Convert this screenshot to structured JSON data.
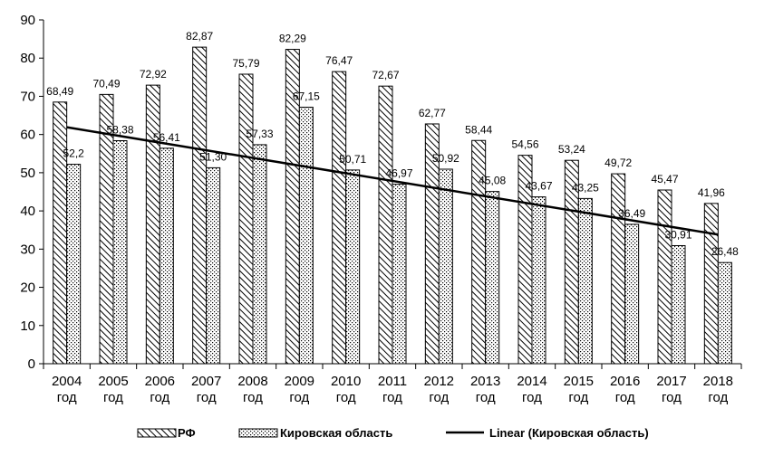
{
  "chart_data": {
    "type": "bar",
    "categories": [
      "2004 год",
      "2005 год",
      "2006 год",
      "2007 год",
      "2008 год",
      "2009 год",
      "2010 год",
      "2011 год",
      "2012 год",
      "2013 год",
      "2014 год",
      "2015 год",
      "2016 год",
      "2017 год",
      "2018 год"
    ],
    "category_lines": [
      [
        "2004",
        "год"
      ],
      [
        "2005",
        "год"
      ],
      [
        "2006",
        "год"
      ],
      [
        "2007",
        "год"
      ],
      [
        "2008",
        "год"
      ],
      [
        "2009",
        "год"
      ],
      [
        "2010",
        "год"
      ],
      [
        "2011",
        "год"
      ],
      [
        "2012",
        "год"
      ],
      [
        "2013",
        "год"
      ],
      [
        "2014",
        "год"
      ],
      [
        "2015",
        "год"
      ],
      [
        "2016",
        "год"
      ],
      [
        "2017",
        "год"
      ],
      [
        "2018",
        "год"
      ]
    ],
    "series": [
      {
        "name": "РФ",
        "pattern": "diagonal-hatch",
        "values": [
          68.49,
          70.49,
          72.92,
          82.87,
          75.79,
          82.29,
          76.47,
          72.67,
          62.77,
          58.44,
          54.56,
          53.24,
          49.72,
          45.47,
          41.96
        ],
        "labels": [
          "68,49",
          "70,49",
          "72,92",
          "82,87",
          "75,79",
          "82,29",
          "76,47",
          "72,67",
          "62,77",
          "58,44",
          "54,56",
          "53,24",
          "49,72",
          "45,47",
          "41,96"
        ]
      },
      {
        "name": "Кировская область",
        "pattern": "dotted",
        "values": [
          52.2,
          58.38,
          56.41,
          51.3,
          57.33,
          67.15,
          50.71,
          46.97,
          50.92,
          45.08,
          43.67,
          43.25,
          36.49,
          30.91,
          26.48
        ],
        "labels": [
          "52,2",
          "58,38",
          "56,41",
          "51,30",
          "57,33",
          "67,15",
          "50,71",
          "46,97",
          "50,92",
          "45,08",
          "43,67",
          "43,25",
          "36,49",
          "30,91",
          "26,48"
        ]
      }
    ],
    "trendline": {
      "name": "Linear (Кировская область)",
      "of_series": "Кировская область",
      "start_value": 61.9,
      "end_value": 33.8,
      "color": "#000000"
    },
    "y_ticks": [
      0,
      10,
      20,
      30,
      40,
      50,
      60,
      70,
      80,
      90
    ],
    "ylim": [
      0,
      90
    ],
    "grid": false,
    "legend_position": "bottom",
    "title": "",
    "xlabel": "",
    "ylabel": ""
  }
}
